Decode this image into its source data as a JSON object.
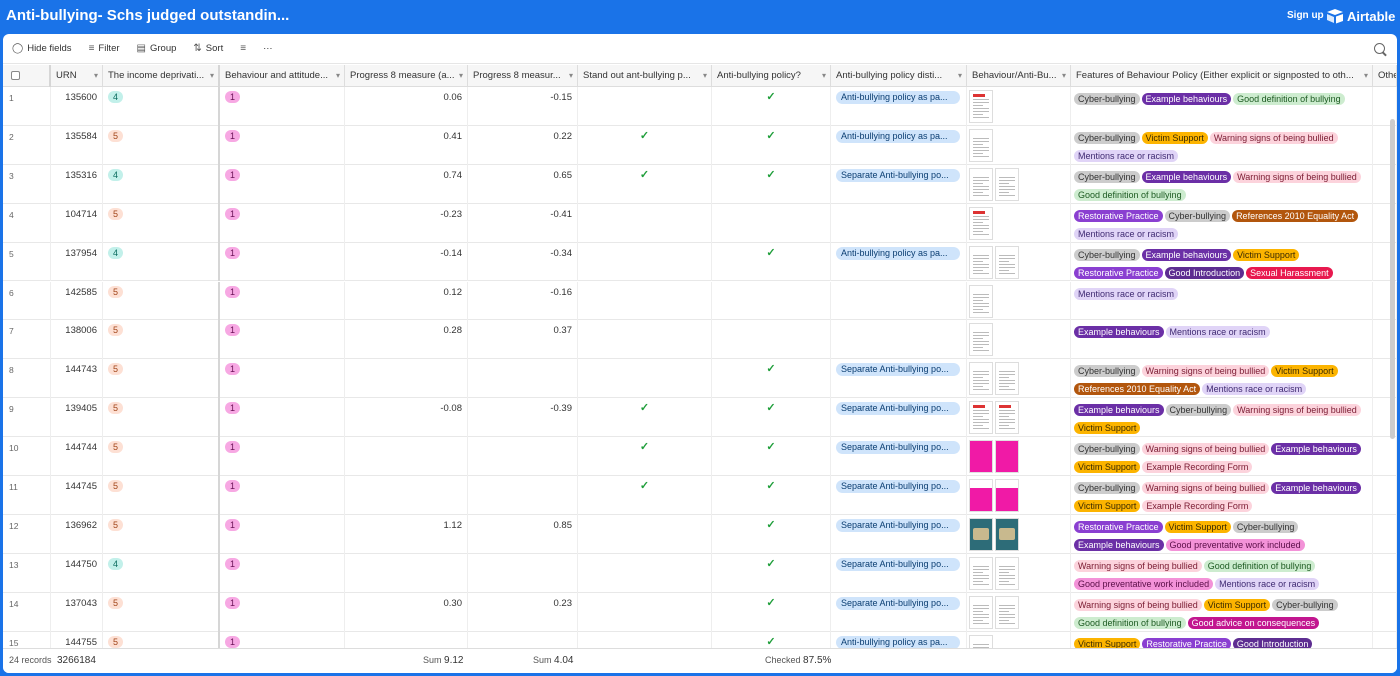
{
  "header": {
    "title": "Anti-bullying- Schs judged outstandin...",
    "signup_label": "Sign up",
    "brand": "Airtable"
  },
  "toolbar": {
    "hide_fields": "Hide fields",
    "filter": "Filter",
    "group": "Group",
    "sort": "Sort",
    "more": "···"
  },
  "columns": [
    "URN",
    "The income deprivati...",
    "Behaviour and attitude...",
    "Progress 8 measure (a...",
    "Progress 8 measur...",
    "Stand out ant-bullying p...",
    "Anti-bullying policy?",
    "Anti-bullying policy disti...",
    "Behaviour/Anti-Bu...",
    "Features of Behaviour Policy (Either explicit or signposted to oth...",
    "Othe"
  ],
  "rows": [
    {
      "idx": "1",
      "urn": "135600",
      "dep": "4",
      "beh": "1",
      "p8a": "0.06",
      "p8b": "-0.15",
      "standout": false,
      "policy": true,
      "dist": "Anti-bullying policy as pa...",
      "thumbs": [
        "doc-red"
      ],
      "tags": [
        [
          "Cyber-bullying",
          "cyber"
        ],
        [
          "Example behaviours",
          "example"
        ],
        [
          "Good definition of bullying",
          "gooddef"
        ]
      ]
    },
    {
      "idx": "2",
      "urn": "135584",
      "dep": "5",
      "beh": "1",
      "p8a": "0.41",
      "p8b": "0.22",
      "standout": true,
      "policy": true,
      "dist": "Anti-bullying policy as pa...",
      "thumbs": [
        "doc"
      ],
      "tags": [
        [
          "Cyber-bullying",
          "cyber"
        ],
        [
          "Victim Support",
          "victim"
        ],
        [
          "Warning signs of being bullied",
          "warning"
        ],
        [
          "Mentions race or racism",
          "race"
        ]
      ]
    },
    {
      "idx": "3",
      "urn": "135316",
      "dep": "4",
      "beh": "1",
      "p8a": "0.74",
      "p8b": "0.65",
      "standout": true,
      "policy": true,
      "dist": "Separate Anti-bullying po...",
      "thumbs": [
        "doc",
        "doc"
      ],
      "tags": [
        [
          "Cyber-bullying",
          "cyber"
        ],
        [
          "Example behaviours",
          "example"
        ],
        [
          "Warning signs of being bullied",
          "warning"
        ],
        [
          "Good definition of bullying",
          "gooddef"
        ]
      ]
    },
    {
      "idx": "4",
      "urn": "104714",
      "dep": "5",
      "beh": "1",
      "p8a": "-0.23",
      "p8b": "-0.41",
      "standout": false,
      "policy": false,
      "dist": "",
      "thumbs": [
        "doc-red"
      ],
      "tags": [
        [
          "Restorative Practice",
          "restor"
        ],
        [
          "Cyber-bullying",
          "cyber"
        ],
        [
          "References 2010 Equality Act",
          "refs"
        ],
        [
          "Mentions race or racism",
          "race"
        ]
      ]
    },
    {
      "idx": "5",
      "urn": "137954",
      "dep": "4",
      "beh": "1",
      "p8a": "-0.14",
      "p8b": "-0.34",
      "standout": false,
      "policy": true,
      "dist": "Anti-bullying policy as pa...",
      "thumbs": [
        "doc",
        "doc"
      ],
      "tags": [
        [
          "Cyber-bullying",
          "cyber"
        ],
        [
          "Example behaviours",
          "example"
        ],
        [
          "Victim Support",
          "victim"
        ],
        [
          "Restorative Practice",
          "restor"
        ],
        [
          "Good Introduction",
          "intro"
        ],
        [
          "Sexual Harassment",
          "sexual"
        ]
      ]
    },
    {
      "idx": "6",
      "urn": "142585",
      "dep": "5",
      "beh": "1",
      "p8a": "0.12",
      "p8b": "-0.16",
      "standout": false,
      "policy": false,
      "dist": "",
      "thumbs": [
        "doc"
      ],
      "tags": [
        [
          "Mentions race or racism",
          "race"
        ]
      ]
    },
    {
      "idx": "7",
      "urn": "138006",
      "dep": "5",
      "beh": "1",
      "p8a": "0.28",
      "p8b": "0.37",
      "standout": false,
      "policy": false,
      "dist": "",
      "thumbs": [
        "doc"
      ],
      "tags": [
        [
          "Example behaviours",
          "example"
        ],
        [
          "Mentions race or racism",
          "race"
        ]
      ]
    },
    {
      "idx": "8",
      "urn": "144743",
      "dep": "5",
      "beh": "1",
      "p8a": "",
      "p8b": "",
      "standout": false,
      "policy": true,
      "dist": "Separate Anti-bullying po...",
      "thumbs": [
        "doc",
        "doc"
      ],
      "tags": [
        [
          "Cyber-bullying",
          "cyber"
        ],
        [
          "Warning signs of being bullied",
          "warning"
        ],
        [
          "Victim Support",
          "victim"
        ],
        [
          "References 2010 Equality Act",
          "refs"
        ],
        [
          "Mentions race or racism",
          "race"
        ]
      ]
    },
    {
      "idx": "9",
      "urn": "139405",
      "dep": "5",
      "beh": "1",
      "p8a": "-0.08",
      "p8b": "-0.39",
      "standout": true,
      "policy": true,
      "dist": "Separate Anti-bullying po...",
      "thumbs": [
        "doc-red",
        "doc-red"
      ],
      "tags": [
        [
          "Example behaviours",
          "example"
        ],
        [
          "Cyber-bullying",
          "cyber"
        ],
        [
          "Warning signs of being bullied",
          "warning"
        ],
        [
          "Victim Support",
          "victim"
        ]
      ]
    },
    {
      "idx": "10",
      "urn": "144744",
      "dep": "5",
      "beh": "1",
      "p8a": "",
      "p8b": "",
      "standout": true,
      "policy": true,
      "dist": "Separate Anti-bullying po...",
      "thumbs": [
        "pink",
        "pink"
      ],
      "tags": [
        [
          "Cyber-bullying",
          "cyber"
        ],
        [
          "Warning signs of being bullied",
          "warning"
        ],
        [
          "Example behaviours",
          "example"
        ],
        [
          "Victim Support",
          "victim"
        ],
        [
          "Example Recording Form",
          "recording"
        ]
      ]
    },
    {
      "idx": "11",
      "urn": "144745",
      "dep": "5",
      "beh": "1",
      "p8a": "",
      "p8b": "",
      "standout": true,
      "policy": true,
      "dist": "Separate Anti-bullying po...",
      "thumbs": [
        "pink-top",
        "pink-top"
      ],
      "tags": [
        [
          "Cyber-bullying",
          "cyber"
        ],
        [
          "Warning signs of being bullied",
          "warning"
        ],
        [
          "Example behaviours",
          "example"
        ],
        [
          "Victim Support",
          "victim"
        ],
        [
          "Example Recording Form",
          "recording"
        ]
      ]
    },
    {
      "idx": "12",
      "urn": "136962",
      "dep": "5",
      "beh": "1",
      "p8a": "1.12",
      "p8b": "0.85",
      "standout": false,
      "policy": true,
      "dist": "Separate Anti-bullying po...",
      "thumbs": [
        "teal",
        "teal"
      ],
      "tags": [
        [
          "Restorative Practice",
          "restor"
        ],
        [
          "Victim Support",
          "victim"
        ],
        [
          "Cyber-bullying",
          "cyber"
        ],
        [
          "Example behaviours",
          "example"
        ],
        [
          "Good preventative work included",
          "prevent"
        ]
      ]
    },
    {
      "idx": "13",
      "urn": "144750",
      "dep": "4",
      "beh": "1",
      "p8a": "",
      "p8b": "",
      "standout": false,
      "policy": true,
      "dist": "Separate Anti-bullying po...",
      "thumbs": [
        "doc",
        "doc"
      ],
      "tags": [
        [
          "Warning signs of being bullied",
          "warning"
        ],
        [
          "Good definition of bullying",
          "gooddef"
        ],
        [
          "Good preventative work included",
          "prevent"
        ],
        [
          "Mentions race or racism",
          "race"
        ]
      ]
    },
    {
      "idx": "14",
      "urn": "137043",
      "dep": "5",
      "beh": "1",
      "p8a": "0.30",
      "p8b": "0.23",
      "standout": false,
      "policy": true,
      "dist": "Separate Anti-bullying po...",
      "thumbs": [
        "doc",
        "doc"
      ],
      "tags": [
        [
          "Warning signs of being bullied",
          "warning"
        ],
        [
          "Victim Support",
          "victim"
        ],
        [
          "Cyber-bullying",
          "cyber"
        ],
        [
          "Good definition of bullying",
          "gooddef"
        ],
        [
          "Good advice on consequences",
          "advice"
        ]
      ]
    },
    {
      "idx": "15",
      "urn": "144755",
      "dep": "5",
      "beh": "1",
      "p8a": "",
      "p8b": "",
      "standout": false,
      "policy": true,
      "dist": "Anti-bullying policy as pa...",
      "thumbs": [
        "doc"
      ],
      "tags": [
        [
          "Victim Support",
          "victim"
        ],
        [
          "Restorative Practice",
          "restor"
        ],
        [
          "Good Introduction",
          "intro"
        ]
      ]
    }
  ],
  "footer": {
    "records": "24 records",
    "urn_sum": "3266184",
    "sum_label_a": "Sum",
    "sum_a": "9.12",
    "sum_label_b": "Sum",
    "sum_b": "4.04",
    "checked_label": "Checked",
    "checked_value": "87.5%"
  },
  "colors": {
    "topbar": "#1a73e8",
    "check": "#1f9e3a"
  }
}
